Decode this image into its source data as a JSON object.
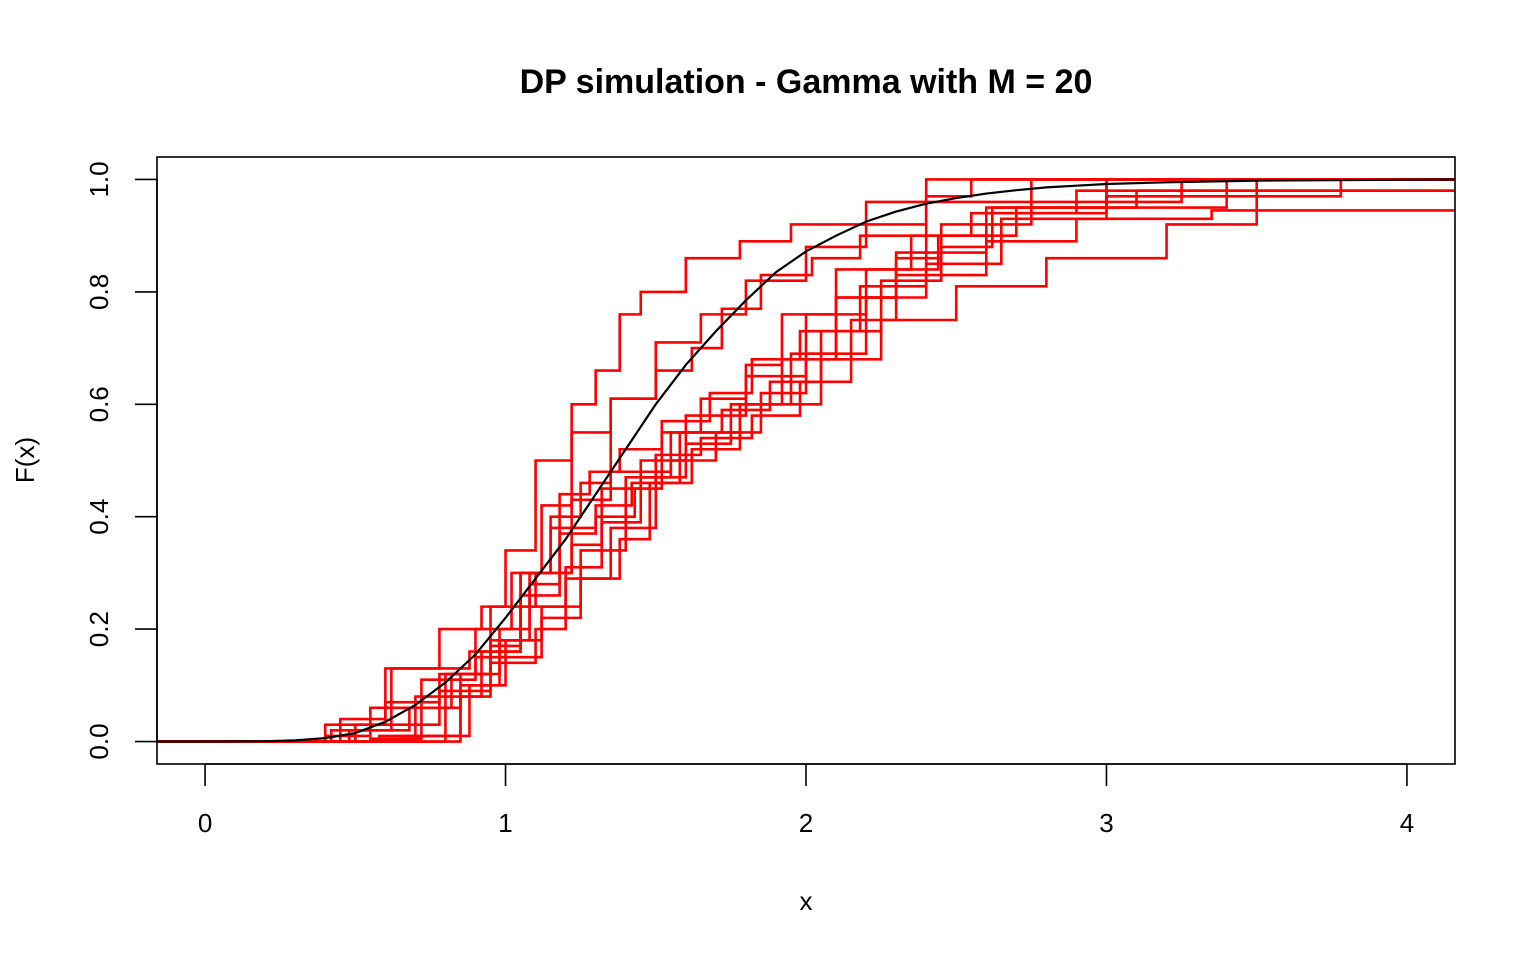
{
  "chart_data": {
    "type": "line",
    "title": "DP simulation - Gamma with M = 20",
    "xlabel": "x",
    "ylabel": "F(x)",
    "xlim": [
      -0.16,
      4.16
    ],
    "ylim": [
      -0.04,
      1.04
    ],
    "xticks": [
      0,
      1,
      2,
      3,
      4
    ],
    "yticks": [
      "0.0",
      "0.2",
      "0.4",
      "0.6",
      "0.8",
      "1.0"
    ],
    "grid": false,
    "legend": "none",
    "colors": {
      "reference": "#000000",
      "simulations": "#ff0000"
    },
    "series": [
      {
        "style": "smooth",
        "color": "#000000",
        "x": [
          0,
          0.2,
          0.3,
          0.4,
          0.5,
          0.6,
          0.7,
          0.8,
          0.9,
          1.0,
          1.1,
          1.2,
          1.3,
          1.4,
          1.5,
          1.6,
          1.7,
          1.8,
          1.9,
          2.0,
          2.1,
          2.2,
          2.3,
          2.4,
          2.5,
          2.6,
          2.7,
          2.8,
          2.9,
          3.0,
          3.2,
          3.5,
          4.16
        ],
        "y": [
          0,
          0.0005,
          0.002,
          0.006,
          0.015,
          0.035,
          0.065,
          0.105,
          0.155,
          0.22,
          0.29,
          0.36,
          0.44,
          0.52,
          0.6,
          0.67,
          0.73,
          0.785,
          0.835,
          0.872,
          0.9,
          0.925,
          0.943,
          0.957,
          0.967,
          0.975,
          0.981,
          0.986,
          0.989,
          0.992,
          0.995,
          0.998,
          1.0
        ]
      },
      {
        "style": "step",
        "color": "#ff0000",
        "x": [
          0.58,
          0.85,
          0.95,
          1.05,
          1.12,
          1.22,
          1.35,
          1.5,
          1.62,
          1.72,
          1.85,
          2.02,
          2.18,
          2.4,
          2.55
        ],
        "y": [
          0.01,
          0.08,
          0.18,
          0.3,
          0.42,
          0.55,
          0.61,
          0.66,
          0.7,
          0.77,
          0.83,
          0.86,
          0.9,
          0.97,
          1.0
        ]
      },
      {
        "style": "step",
        "color": "#ff0000",
        "x": [
          0.42,
          0.62,
          0.78,
          0.92,
          1.0,
          1.1,
          1.22,
          1.3,
          1.38,
          1.45,
          1.6,
          1.78,
          1.95,
          2.2,
          2.4
        ],
        "y": [
          0.02,
          0.13,
          0.2,
          0.24,
          0.34,
          0.5,
          0.6,
          0.66,
          0.76,
          0.8,
          0.86,
          0.89,
          0.92,
          0.96,
          1.0
        ]
      },
      {
        "style": "step",
        "color": "#ff0000",
        "x": [
          0.45,
          0.6,
          0.88,
          1.05,
          1.15,
          1.3,
          1.42,
          1.58,
          1.78,
          2.05,
          2.25,
          2.5,
          2.8,
          3.2,
          3.5
        ],
        "y": [
          0.04,
          0.13,
          0.16,
          0.3,
          0.38,
          0.42,
          0.46,
          0.55,
          0.6,
          0.68,
          0.75,
          0.81,
          0.86,
          0.92,
          1.0
        ]
      },
      {
        "style": "step",
        "color": "#ff0000",
        "x": [
          0.62,
          0.8,
          0.95,
          1.1,
          1.22,
          1.35,
          1.55,
          1.72,
          1.88,
          2.05,
          2.25,
          2.45,
          2.62,
          3.0,
          3.78
        ],
        "y": [
          0.0,
          0.12,
          0.24,
          0.3,
          0.43,
          0.48,
          0.55,
          0.59,
          0.64,
          0.73,
          0.82,
          0.88,
          0.95,
          0.97,
          1.0
        ]
      },
      {
        "style": "step",
        "color": "#ff0000",
        "x": [
          0.5,
          0.78,
          0.95,
          1.1,
          1.2,
          1.35,
          1.5,
          1.65,
          1.82,
          1.98,
          2.15,
          2.3,
          2.6,
          2.9,
          3.35
        ],
        "y": [
          0.03,
          0.09,
          0.14,
          0.2,
          0.29,
          0.38,
          0.51,
          0.54,
          0.58,
          0.64,
          0.75,
          0.83,
          0.89,
          0.93,
          0.945
        ]
      },
      {
        "style": "step",
        "color": "#ff0000",
        "x": [
          0.4,
          0.55,
          0.82,
          0.98,
          1.08,
          1.22,
          1.32,
          1.45,
          1.6,
          1.8,
          2.0,
          2.2,
          2.44,
          2.7,
          3.1
        ],
        "y": [
          0.01,
          0.06,
          0.12,
          0.2,
          0.3,
          0.35,
          0.45,
          0.5,
          0.58,
          0.65,
          0.76,
          0.84,
          0.9,
          0.95,
          0.98
        ]
      },
      {
        "style": "step",
        "color": "#ff0000",
        "x": [
          0.55,
          0.72,
          0.9,
          1.0,
          1.12,
          1.25,
          1.4,
          1.55,
          1.7,
          1.85,
          2.0,
          2.2,
          2.4,
          2.65,
          3.0
        ],
        "y": [
          0.005,
          0.11,
          0.15,
          0.18,
          0.24,
          0.34,
          0.47,
          0.5,
          0.55,
          0.62,
          0.69,
          0.79,
          0.85,
          0.93,
          1.0
        ]
      },
      {
        "style": "step",
        "color": "#ff0000",
        "x": [
          0.6,
          0.85,
          1.0,
          1.12,
          1.25,
          1.38,
          1.48,
          1.62,
          1.78,
          1.95,
          2.1,
          2.3,
          2.45,
          2.75,
          3.25
        ],
        "y": [
          0.0,
          0.1,
          0.15,
          0.22,
          0.29,
          0.36,
          0.46,
          0.52,
          0.6,
          0.69,
          0.79,
          0.86,
          0.92,
          0.96,
          1.0
        ]
      },
      {
        "style": "step",
        "color": "#ff0000",
        "x": [
          0.65,
          0.88,
          0.98,
          1.08,
          1.18,
          1.3,
          1.43,
          1.52,
          1.65,
          1.8,
          1.92,
          2.1,
          2.35,
          2.55,
          2.9
        ],
        "y": [
          0.01,
          0.1,
          0.18,
          0.28,
          0.37,
          0.4,
          0.45,
          0.55,
          0.61,
          0.67,
          0.76,
          0.84,
          0.9,
          0.94,
          0.98
        ]
      },
      {
        "style": "step",
        "color": "#ff0000",
        "x": [
          0.52,
          0.7,
          0.92,
          1.05,
          1.18,
          1.28,
          1.38,
          1.52,
          1.68,
          1.82,
          1.98,
          2.18,
          2.4,
          2.62,
          3.0
        ],
        "y": [
          0.0,
          0.08,
          0.16,
          0.26,
          0.44,
          0.48,
          0.52,
          0.57,
          0.62,
          0.68,
          0.73,
          0.81,
          0.9,
          0.94,
          1.0
        ]
      },
      {
        "style": "step",
        "color": "#ff0000",
        "x": [
          0.4,
          0.6,
          0.78,
          0.9,
          1.02,
          1.15,
          1.25,
          1.35,
          1.5,
          1.65,
          1.8,
          2.0,
          2.2,
          2.4,
          2.75
        ],
        "y": [
          0.03,
          0.07,
          0.12,
          0.2,
          0.3,
          0.4,
          0.46,
          0.61,
          0.71,
          0.76,
          0.82,
          0.88,
          0.92,
          0.96,
          1.0
        ]
      },
      {
        "style": "step",
        "color": "#ff0000",
        "x": [
          0.48,
          0.68,
          0.85,
          0.95,
          1.05,
          1.2,
          1.32,
          1.45,
          1.6,
          1.75,
          1.92,
          2.1,
          2.3,
          2.6,
          3.4
        ],
        "y": [
          0.02,
          0.06,
          0.12,
          0.17,
          0.24,
          0.31,
          0.39,
          0.47,
          0.53,
          0.6,
          0.68,
          0.79,
          0.87,
          0.95,
          1.0
        ]
      }
    ]
  }
}
